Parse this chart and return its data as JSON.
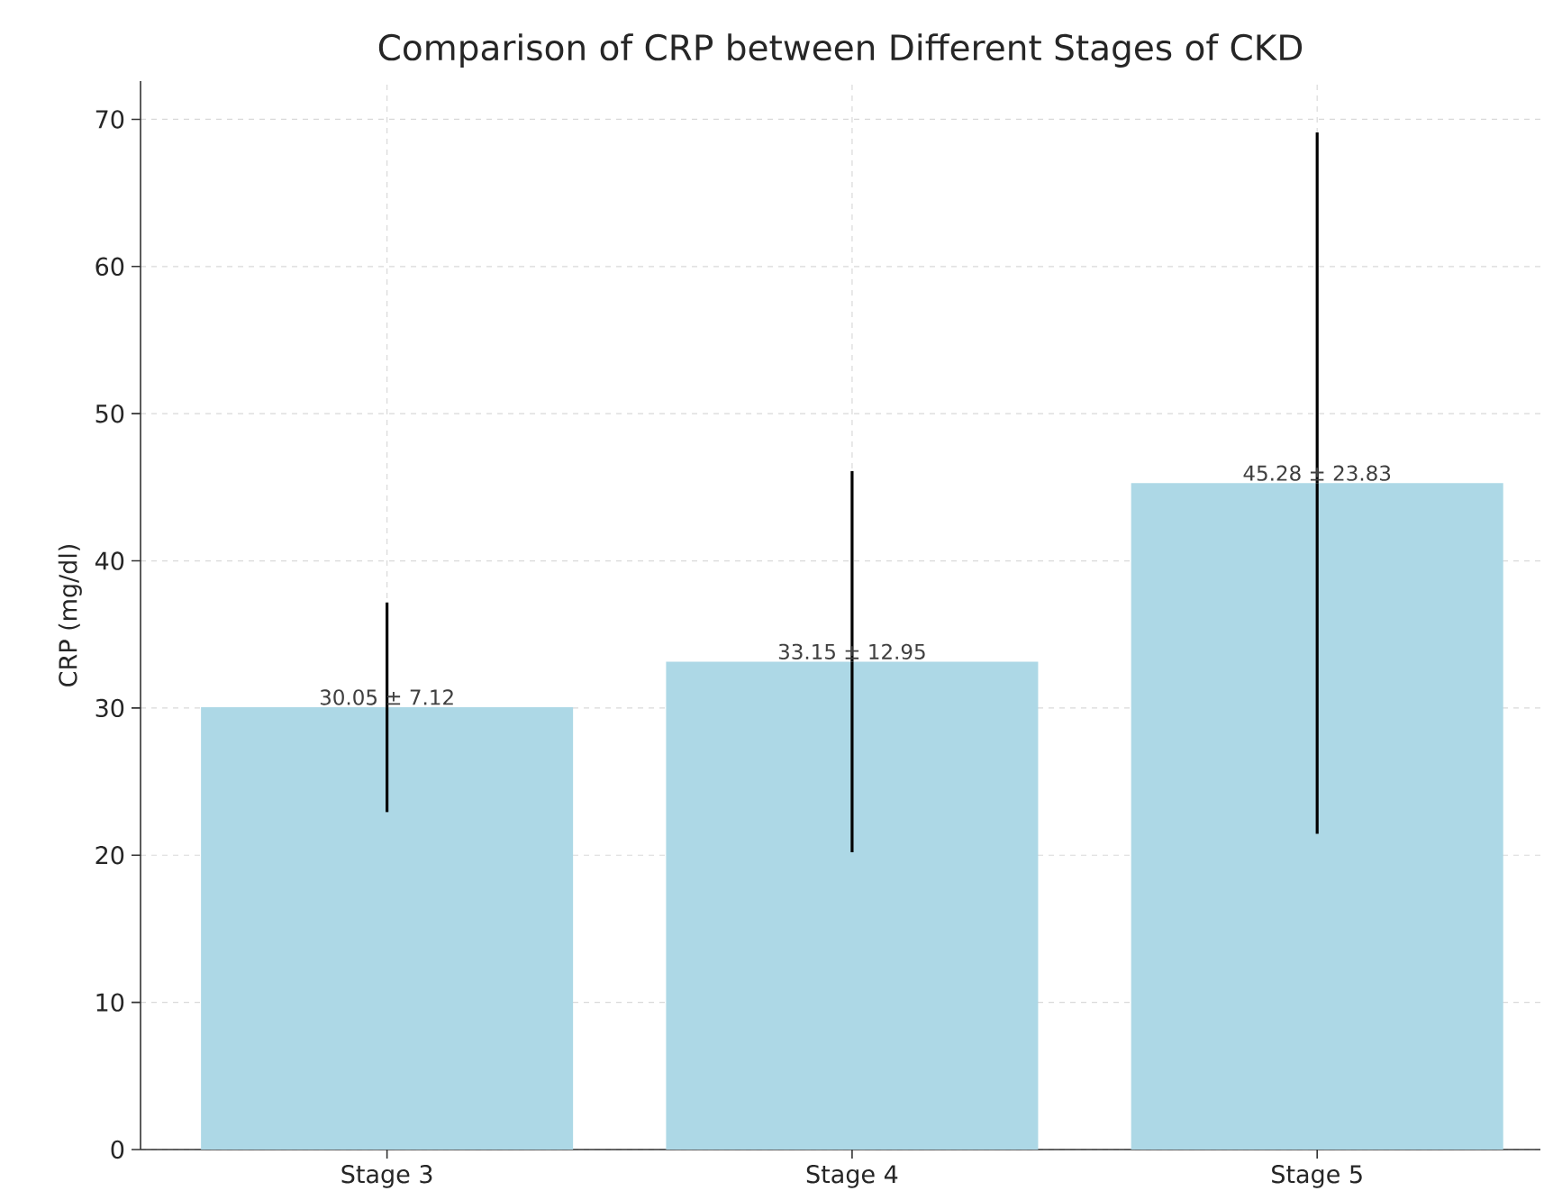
{
  "chart_data": {
    "type": "bar",
    "title": "Comparison of CRP between Different Stages of CKD",
    "ylabel": "CRP (mg/dl)",
    "categories": [
      "Stage 3",
      "Stage 4",
      "Stage 5"
    ],
    "values": [
      30.05,
      33.15,
      45.28
    ],
    "errors": [
      7.12,
      12.95,
      23.83
    ],
    "value_labels": [
      "30.05 ± 7.12",
      "33.15 ± 12.95",
      "45.28 ± 23.83"
    ],
    "color": "#add8e6",
    "ylim": [
      0,
      72.6
    ],
    "yticks": [
      0,
      10,
      20,
      30,
      40,
      50,
      60,
      70
    ],
    "grid": true
  }
}
